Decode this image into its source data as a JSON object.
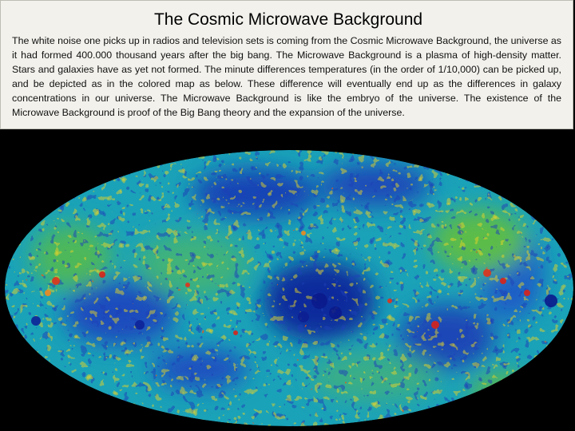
{
  "slide": {
    "title": "The Cosmic Microwave Background",
    "body": "The white noise one picks up in radios and television sets is coming from the Cosmic Microwave Background, the universe as it had formed 400.000 thousand years after the big bang. The Microwave Background is a plasma of high-density matter. Stars and galaxies have as yet not formed. The minute differences temperatures (in the order of 1/10,000) can be picked up, and be depicted as in the colored map as below. These difference will eventually end up as the differences in galaxy concentrations in our universe. The Microwave Background is like the embryo of the universe. The existence of the Microwave Background is proof of the Big Bang theory and the expansion of the universe."
  },
  "map": {
    "colors": {
      "background": "#000000",
      "deep_blue": "#0a1a8c",
      "blue": "#1f4fc4",
      "cyan": "#1fa6c8",
      "teal": "#22b49a",
      "green": "#6cc23a",
      "yellow": "#e6d42a",
      "orange": "#f08a1e",
      "red": "#d8231a"
    }
  }
}
